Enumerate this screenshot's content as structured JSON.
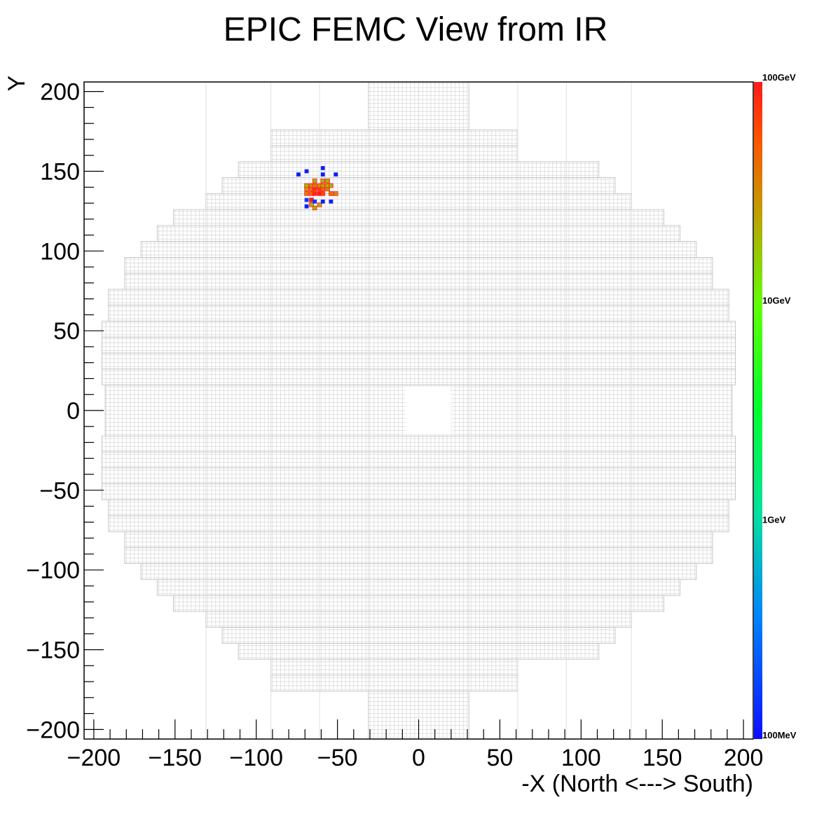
{
  "chart_data": {
    "type": "heatmap",
    "title": "EPIC FEMC View from IR",
    "xlabel": "-X (North <---> South)",
    "ylabel": "Y",
    "xlim": [
      -206,
      206
    ],
    "ylim": [
      -206,
      206
    ],
    "x_ticks": [
      -200,
      -150,
      -100,
      -50,
      0,
      50,
      100,
      150,
      200
    ],
    "y_ticks": [
      -200,
      -150,
      -100,
      -50,
      0,
      50,
      100,
      150,
      200
    ],
    "x_tick_labels": [
      "−200",
      "−150",
      "−100",
      "−50",
      "0",
      "50",
      "100",
      "150",
      "200"
    ],
    "y_tick_labels": [
      "−200",
      "−150",
      "−100",
      "−50",
      "0",
      "50",
      "100",
      "150",
      "200"
    ],
    "detector": {
      "outline_rows": [
        [
          176,
          206,
          -31,
          31
        ],
        [
          166,
          176,
          -91,
          61
        ],
        [
          156,
          166,
          -91,
          61
        ],
        [
          146,
          156,
          -111,
          111
        ],
        [
          136,
          146,
          -121,
          121
        ],
        [
          126,
          136,
          -131,
          131
        ],
        [
          116,
          126,
          -151,
          151
        ],
        [
          106,
          116,
          -161,
          161
        ],
        [
          96,
          106,
          -171,
          171
        ],
        [
          86,
          96,
          -181,
          181
        ],
        [
          76,
          86,
          -181,
          181
        ],
        [
          66,
          76,
          -191,
          191
        ],
        [
          56,
          66,
          -191,
          191
        ],
        [
          46,
          56,
          -195,
          195
        ],
        [
          36,
          46,
          -195,
          195
        ],
        [
          26,
          36,
          -195,
          195
        ],
        [
          16,
          26,
          -195,
          195
        ],
        [
          -16,
          16,
          -193,
          193
        ],
        [
          -26,
          -16,
          -195,
          195
        ],
        [
          -36,
          -26,
          -195,
          195
        ],
        [
          -46,
          -36,
          -195,
          195
        ],
        [
          -56,
          -46,
          -195,
          195
        ],
        [
          -66,
          -56,
          -191,
          191
        ],
        [
          -76,
          -66,
          -191,
          191
        ],
        [
          -86,
          -76,
          -181,
          181
        ],
        [
          -96,
          -86,
          -181,
          181
        ],
        [
          -106,
          -96,
          -171,
          171
        ],
        [
          -116,
          -106,
          -161,
          161
        ],
        [
          -126,
          -116,
          -151,
          151
        ],
        [
          -136,
          -126,
          -131,
          131
        ],
        [
          -146,
          -136,
          -121,
          121
        ],
        [
          -156,
          -146,
          -111,
          111
        ],
        [
          -166,
          -156,
          -91,
          61
        ],
        [
          -176,
          -166,
          -91,
          61
        ],
        [
          -206,
          -176,
          -31,
          31
        ]
      ],
      "beam_hole": [
        -8,
        20,
        -15,
        15
      ],
      "cell_size": 2.5
    },
    "hits": [
      {
        "x": -66,
        "y": 132,
        "e": 300
      },
      {
        "x": -69,
        "y": 136,
        "e": 35
      },
      {
        "x": -66,
        "y": 136,
        "e": 45
      },
      {
        "x": -64,
        "y": 136,
        "e": 90
      },
      {
        "x": -61,
        "y": 136,
        "e": 120
      },
      {
        "x": -59,
        "y": 136,
        "e": 60
      },
      {
        "x": -54,
        "y": 136,
        "e": 40
      },
      {
        "x": -51,
        "y": 136,
        "e": 30
      },
      {
        "x": -69,
        "y": 139,
        "e": 25
      },
      {
        "x": -66,
        "y": 139,
        "e": 40
      },
      {
        "x": -64,
        "y": 139,
        "e": 80
      },
      {
        "x": -61,
        "y": 139,
        "e": 70
      },
      {
        "x": -59,
        "y": 139,
        "e": 40
      },
      {
        "x": -56,
        "y": 139,
        "e": 30
      },
      {
        "x": -69,
        "y": 141,
        "e": 20
      },
      {
        "x": -66,
        "y": 141,
        "e": 30
      },
      {
        "x": -64,
        "y": 141,
        "e": 35
      },
      {
        "x": -61,
        "y": 141,
        "e": 30
      },
      {
        "x": -59,
        "y": 141,
        "e": 25
      },
      {
        "x": -56,
        "y": 141,
        "e": 20
      },
      {
        "x": -54,
        "y": 141,
        "e": 20
      },
      {
        "x": -64,
        "y": 144,
        "e": 20
      },
      {
        "x": -59,
        "y": 144,
        "e": 20
      },
      {
        "x": -56,
        "y": 144,
        "e": 20
      },
      {
        "x": -66,
        "y": 129,
        "e": 20
      },
      {
        "x": -61,
        "y": 129,
        "e": 20
      },
      {
        "x": -64,
        "y": 127,
        "e": 20
      },
      {
        "x": -74,
        "y": 148,
        "e": 0.12
      },
      {
        "x": -69,
        "y": 150,
        "e": 0.12
      },
      {
        "x": -59,
        "y": 152,
        "e": 0.12
      },
      {
        "x": -59,
        "y": 148,
        "e": 0.12
      },
      {
        "x": -51,
        "y": 148,
        "e": 0.12
      },
      {
        "x": -69,
        "y": 128,
        "e": 0.12
      },
      {
        "x": -59,
        "y": 131,
        "e": 0.12
      },
      {
        "x": -54,
        "y": 131,
        "e": 0.12
      },
      {
        "x": -69,
        "y": 132,
        "e": 0.15
      },
      {
        "x": -64,
        "y": 131,
        "e": 0.15
      }
    ],
    "colorbar": {
      "scale": "log",
      "min_gev": 0.1,
      "max_gev": 100,
      "labels": [
        "100GeV",
        "10GeV",
        "1GeV",
        "100MeV"
      ]
    }
  }
}
